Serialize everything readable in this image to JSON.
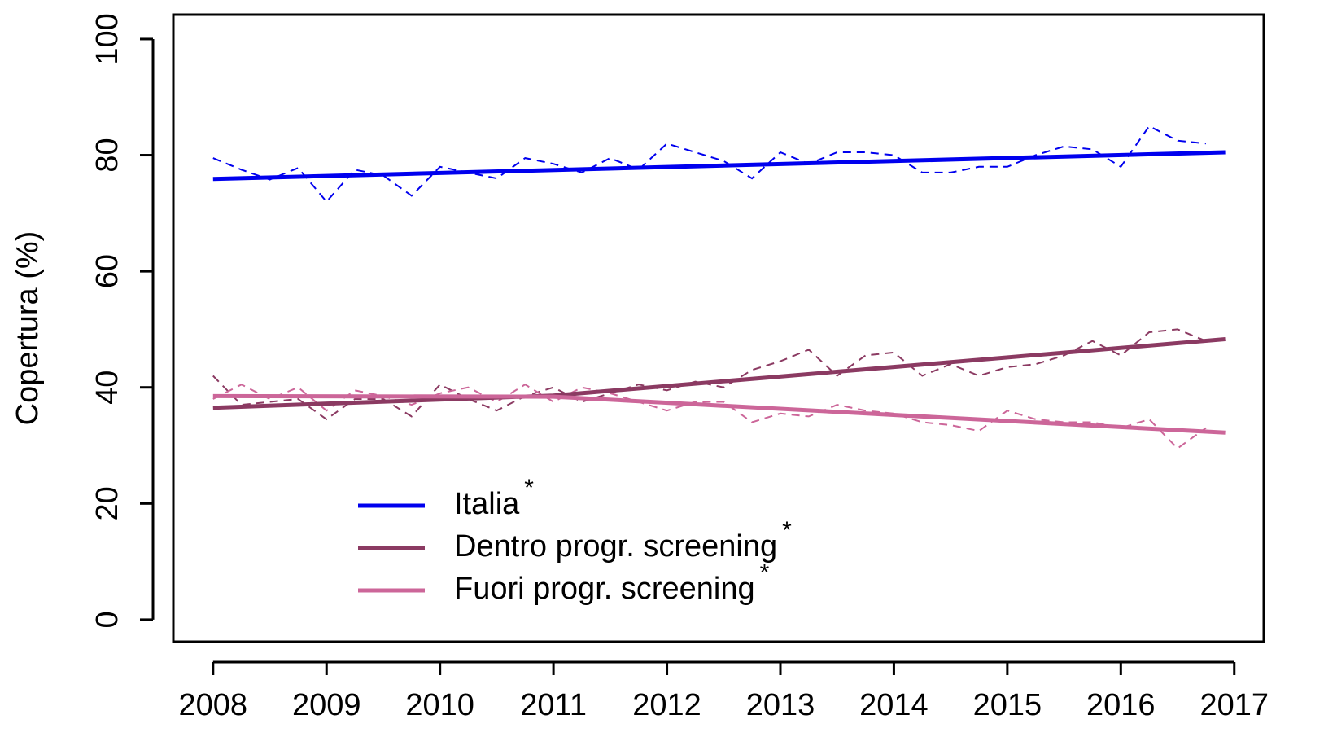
{
  "chart_data": {
    "type": "line",
    "ylabel": "Copertura (%)",
    "xlim": [
      2007.65,
      2017.26
    ],
    "ylim": [
      -3.8,
      104.2
    ],
    "xticks": [
      2008,
      2009,
      2010,
      2011,
      2012,
      2013,
      2014,
      2015,
      2016,
      2017
    ],
    "yticks": [
      0,
      20,
      40,
      60,
      80,
      100
    ],
    "legend_mark": "*",
    "x": [
      2008,
      2008.25,
      2008.5,
      2008.75,
      2009,
      2009.25,
      2009.5,
      2009.75,
      2010,
      2010.25,
      2010.5,
      2010.75,
      2011,
      2011.25,
      2011.5,
      2011.75,
      2012,
      2012.25,
      2012.5,
      2012.75,
      2013,
      2013.25,
      2013.5,
      2013.75,
      2014,
      2014.25,
      2014.5,
      2014.75,
      2015,
      2015.25,
      2015.5,
      2015.75,
      2016,
      2016.25,
      2016.5,
      2016.75
    ],
    "series": [
      {
        "name": "Italia",
        "color": "#0000ee",
        "values": [
          79.5,
          77.5,
          75.8,
          77.8,
          72,
          77.5,
          76.5,
          73,
          78,
          77,
          76,
          79.5,
          78.5,
          77,
          79.5,
          77.5,
          82,
          80.5,
          79,
          76,
          80.5,
          78.5,
          80.5,
          80.5,
          80,
          77,
          77,
          78,
          78,
          80,
          81.5,
          81,
          78,
          85,
          82.5,
          82
        ],
        "trend_x": [
          2008,
          2016.92
        ],
        "trend": [
          75.9,
          80.5
        ]
      },
      {
        "name": "Dentro progr. screening",
        "color": "#8b3a62",
        "values": [
          42,
          37,
          37.5,
          38,
          34.5,
          38,
          38,
          35,
          40.5,
          38,
          36,
          38.5,
          40,
          37.5,
          39,
          40.5,
          39.5,
          41,
          40,
          43,
          44.5,
          46.5,
          42,
          45.5,
          46,
          42,
          44,
          42,
          43.5,
          44,
          45.5,
          48,
          45.5,
          49.5,
          50,
          48
        ],
        "trend_x": [
          2008,
          2011,
          2016.92
        ],
        "trend": [
          36.5,
          38.6,
          48.3
        ]
      },
      {
        "name": "Fuori progr. screening",
        "color": "#cc6699",
        "values": [
          38,
          40.5,
          38,
          40,
          36,
          39.5,
          38.5,
          37,
          39,
          40,
          37.5,
          40.5,
          37.5,
          40,
          39,
          37.5,
          36,
          37.5,
          37.5,
          34,
          35.5,
          35,
          37,
          36,
          35.5,
          34,
          33.5,
          32.5,
          36,
          34.5,
          34,
          34,
          33,
          34.5,
          29.5,
          33
        ],
        "trend_x": [
          2008,
          2011,
          2016.92
        ],
        "trend": [
          38.5,
          38.4,
          32.2
        ]
      }
    ]
  }
}
